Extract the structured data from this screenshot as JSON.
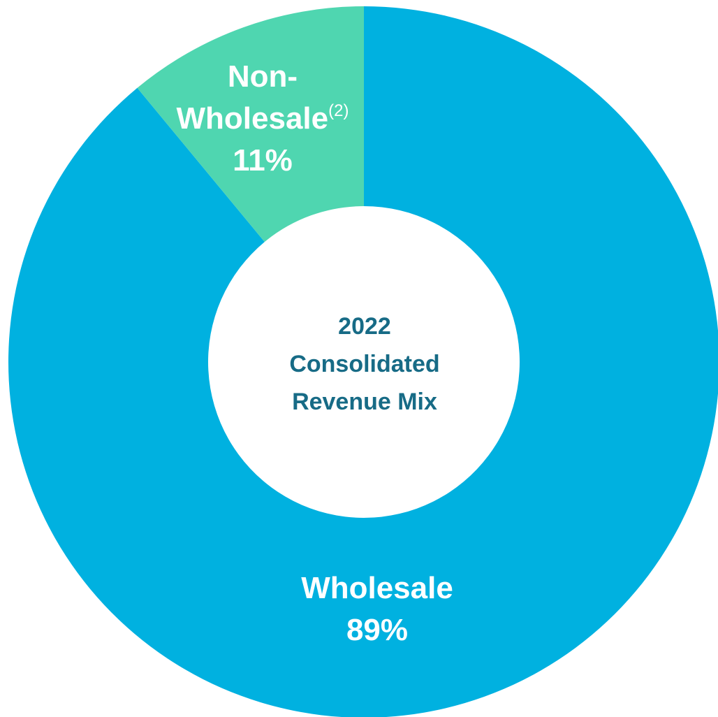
{
  "chart_data": {
    "type": "donut",
    "title": "2022 Consolidated Revenue Mix",
    "categories": [
      "Wholesale",
      "Non-Wholesale"
    ],
    "category_notes": [
      null,
      "(2)"
    ],
    "values": [
      89,
      11
    ],
    "value_labels": [
      "89%",
      "11%"
    ],
    "colors": [
      "#00b1e0",
      "#4fd6b0"
    ]
  }
}
